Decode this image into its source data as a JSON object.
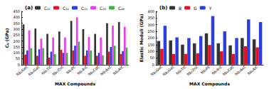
{
  "chart_data": [
    {
      "type": "bar",
      "title": "(a)",
      "x_label": "MAX Compounds",
      "y_label": "Cᵢⱼ (GPa)",
      "categories": [
        "Nb₂GeC",
        "Nb₂GaC",
        "Nb₂TlC",
        "Nb₂ZnC",
        "Nb₂PC",
        "Nb₂InC",
        "Nb₂CdC",
        "Nb₂AsC",
        "Nb₂AlC"
      ],
      "series": [
        {
          "name": "C₁₁",
          "color": "#333333",
          "values": [
            340,
            305,
            260,
            280,
            370,
            300,
            260,
            350,
            360
          ]
        },
        {
          "name": "C₁₂",
          "color": "#e8101a",
          "values": [
            85,
            75,
            60,
            125,
            120,
            75,
            75,
            110,
            90
          ]
        },
        {
          "name": "C₁₃",
          "color": "#2b3fe0",
          "values": [
            120,
            130,
            110,
            100,
            160,
            120,
            100,
            150,
            115
          ]
        },
        {
          "name": "C₃₃",
          "color": "#f03cf0",
          "values": [
            290,
            220,
            230,
            230,
            400,
            235,
            230,
            330,
            320
          ]
        },
        {
          "name": "C₄₄",
          "color": "#3cb43c",
          "values": [
            140,
            140,
            90,
            100,
            195,
            120,
            80,
            160,
            145
          ]
        }
      ],
      "ylim": [
        0,
        450
      ],
      "yticks": [
        0,
        50,
        100,
        150,
        200,
        250,
        300,
        350,
        400,
        450
      ],
      "grid": false,
      "legend": "top"
    },
    {
      "type": "bar",
      "title": "(b)",
      "x_label": "MAX Compounds",
      "y_label": "Elastic Moduli (GPa)",
      "categories": [
        "Nb₂GeC",
        "Nb₂GaC",
        "Nb₂TlC",
        "Nb₂ZnC",
        "Nb₂PC",
        "Nb₂InC",
        "Nb₂CdC",
        "Nb₂AsC",
        "Nb₂AlC"
      ],
      "series": [
        {
          "name": "B",
          "color": "#333333",
          "values": [
            178,
            182,
            150,
            160,
            235,
            160,
            145,
            200,
            190
          ]
        },
        {
          "name": "G",
          "color": "#e8101a",
          "values": [
            118,
            80,
            80,
            85,
            148,
            100,
            80,
            138,
            130
          ]
        },
        {
          "name": "Y",
          "color": "#2b3fe0",
          "values": [
            292,
            205,
            200,
            215,
            365,
            250,
            200,
            340,
            320
          ]
        }
      ],
      "ylim": [
        0,
        400
      ],
      "yticks": [
        0,
        50,
        100,
        150,
        200,
        250,
        300,
        350,
        400
      ],
      "grid": false,
      "legend": "top"
    }
  ]
}
